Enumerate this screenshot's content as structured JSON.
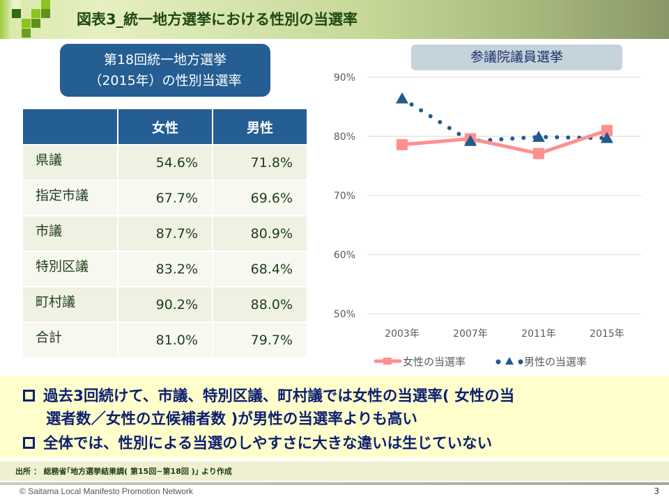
{
  "header": {
    "title": "図表3_統一地方選挙における性別の当選率"
  },
  "table_panel": {
    "subtitle_line1": "第18回統一地方選挙",
    "subtitle_line2": "（2015年）の性別当選率",
    "columns": [
      "",
      "女性",
      "男性"
    ],
    "rows": [
      {
        "label": "県議",
        "female": "54.6%",
        "male": "71.8%"
      },
      {
        "label": "指定市議",
        "female": "67.7%",
        "male": "69.6%"
      },
      {
        "label": "市議",
        "female": "87.7%",
        "male": "80.9%"
      },
      {
        "label": "特別区議",
        "female": "83.2%",
        "male": "68.4%"
      },
      {
        "label": "町村議",
        "female": "90.2%",
        "male": "88.0%"
      },
      {
        "label": "合計",
        "female": "81.0%",
        "male": "79.7%"
      }
    ]
  },
  "chart_data": {
    "type": "line",
    "title": "参議院議員選挙",
    "categories": [
      "2003年",
      "2007年",
      "2011年",
      "2015年"
    ],
    "y_ticks": [
      "50%",
      "60%",
      "70%",
      "80%",
      "90%"
    ],
    "ylim": [
      50,
      90
    ],
    "grid": true,
    "legend_position": "bottom",
    "series": [
      {
        "name": "女性の当選率",
        "values": [
          78.6,
          79.6,
          77.1,
          81.0
        ],
        "color": "#ff8f8f",
        "marker": "square",
        "line": "solid"
      },
      {
        "name": "男性の当選率",
        "values": [
          86.4,
          79.2,
          79.9,
          79.7
        ],
        "color": "#235a8e",
        "marker": "triangle",
        "line": "dotted"
      }
    ]
  },
  "bullets": {
    "line1": "過去3回続けて、市議、特別区議、町村議では女性の当選率( 女性の当",
    "line2": "選者数／女性の立候補者数 )が男性の当選率よりも高い",
    "line3": "全体では、性別による当選のしやすさに大きな違いは生じていない"
  },
  "source": "出所 ： 総務省｢地方選挙結果調( 第15回~第18回 )｣ より作成",
  "footer": {
    "copyright": "© Saitama Local Manifesto Promotion Network",
    "page": "3"
  },
  "colors": {
    "navy": "#245e93",
    "female": "#ff8f8f",
    "male": "#235a8e",
    "bullet_text": "#0d1f70",
    "bullet_bg": "#ffffcc"
  }
}
